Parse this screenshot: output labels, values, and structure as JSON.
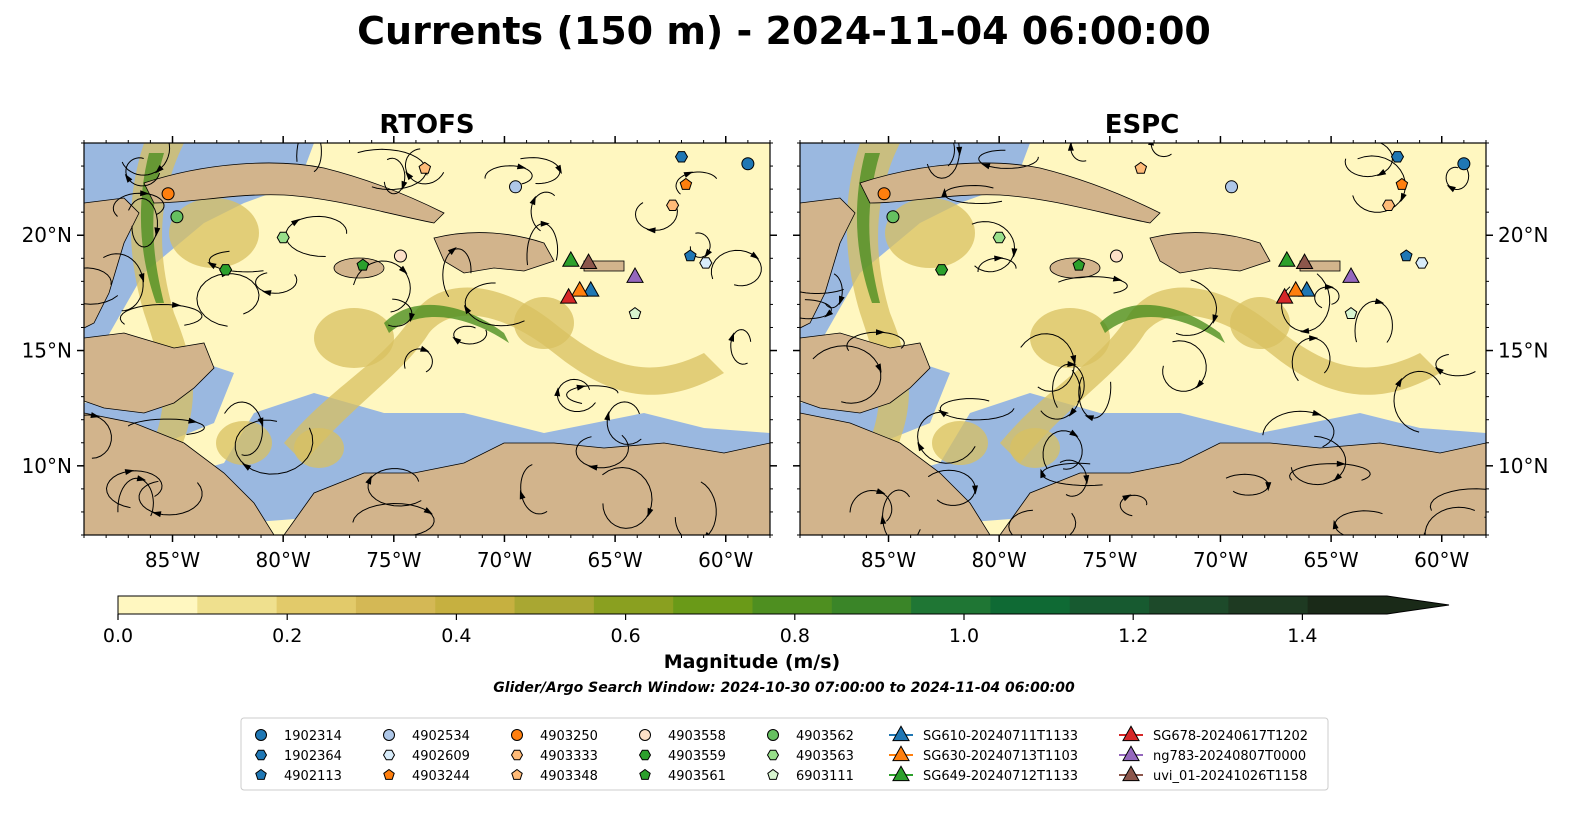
{
  "title": "Currents (150 m) - 2024-11-04 06:00:00",
  "panels": [
    {
      "title": "RTOFS"
    },
    {
      "title": "ESPC"
    }
  ],
  "colorbar": {
    "label": "Magnitude (m/s)",
    "ticks": [
      "0.0",
      "0.2",
      "0.4",
      "0.6",
      "0.8",
      "1.0",
      "1.2",
      "1.4"
    ],
    "colors": [
      "#fff7c0",
      "#efe08e",
      "#e2ca6a",
      "#d4b855",
      "#c6b040",
      "#a9a732",
      "#8aa020",
      "#6a9a18",
      "#4e8f20",
      "#3a8528",
      "#1f7634",
      "#0f6a34",
      "#175a30",
      "#1d4a2a",
      "#1e3a22",
      "#1a2a18"
    ]
  },
  "colors": {
    "land": "#d2b48c",
    "water_shallow": "#9ab8e0",
    "current_low": "#fff7c0",
    "current_mid": "#d8c060",
    "current_high": "#4e8f20"
  },
  "search_window": "Glider/Argo Search Window: 2024-10-30 07:00:00 to 2024-11-04 06:00:00",
  "legend": [
    {
      "label": "1902314",
      "marker": "circle",
      "color": "#1f77b4"
    },
    {
      "label": "1902364",
      "marker": "hexagon",
      "color": "#1f77b4"
    },
    {
      "label": "4902113",
      "marker": "pentagon",
      "color": "#1f77b4"
    },
    {
      "label": "4902534",
      "marker": "circle",
      "color": "#aec7e8"
    },
    {
      "label": "4902609",
      "marker": "hexagon",
      "color": "#d8ecfa"
    },
    {
      "label": "4903244",
      "marker": "pentagon",
      "color": "#ff7f0e"
    },
    {
      "label": "4903250",
      "marker": "circle",
      "color": "#ff7f0e"
    },
    {
      "label": "4903333",
      "marker": "hexagon",
      "color": "#ffbb78"
    },
    {
      "label": "4903348",
      "marker": "pentagon",
      "color": "#ffbb78"
    },
    {
      "label": "4903558",
      "marker": "circle",
      "color": "#fde0c8"
    },
    {
      "label": "4903559",
      "marker": "hexagon",
      "color": "#2ca02c"
    },
    {
      "label": "4903561",
      "marker": "pentagon",
      "color": "#2ca02c"
    },
    {
      "label": "4903562",
      "marker": "circle",
      "color": "#66c060"
    },
    {
      "label": "4903563",
      "marker": "hexagon",
      "color": "#98df8a"
    },
    {
      "label": "6903111",
      "marker": "pentagon",
      "color": "#d8f5d0"
    },
    {
      "label": "SG610-20240711T1133",
      "marker": "triangle",
      "color": "#1f77b4"
    },
    {
      "label": "SG630-20240713T1103",
      "marker": "triangle",
      "color": "#ff7f0e"
    },
    {
      "label": "SG649-20240712T1133",
      "marker": "triangle",
      "color": "#2ca02c"
    },
    {
      "label": "SG678-20240617T1202",
      "marker": "triangle",
      "color": "#d62728"
    },
    {
      "label": "ng783-20240807T0000",
      "marker": "triangle",
      "color": "#9467bd"
    },
    {
      "label": "uvi_01-20241026T1158",
      "marker": "triangle",
      "color": "#8c564b"
    }
  ],
  "chart_data": {
    "type": "map",
    "xlim": [
      -89,
      -58
    ],
    "ylim": [
      7,
      24
    ],
    "xticks": [
      {
        "value": -85,
        "label": "85°W"
      },
      {
        "value": -80,
        "label": "80°W"
      },
      {
        "value": -75,
        "label": "75°W"
      },
      {
        "value": -70,
        "label": "70°W"
      },
      {
        "value": -65,
        "label": "65°W"
      },
      {
        "value": -60,
        "label": "60°W"
      }
    ],
    "yticks": [
      {
        "value": 10,
        "label": "10°N"
      },
      {
        "value": 15,
        "label": "15°N"
      },
      {
        "value": 20,
        "label": "20°N"
      }
    ],
    "vmin": 0.0,
    "vmax": 1.5,
    "platforms": [
      {
        "name": "1902314",
        "lon": -59.0,
        "lat": 23.1
      },
      {
        "name": "1902364",
        "lon": -62.0,
        "lat": 23.4
      },
      {
        "name": "4902113",
        "lon": -61.6,
        "lat": 19.1
      },
      {
        "name": "4902534",
        "lon": -69.5,
        "lat": 22.1
      },
      {
        "name": "4902609",
        "lon": -60.9,
        "lat": 18.8
      },
      {
        "name": "4903244",
        "lon": -61.8,
        "lat": 22.2
      },
      {
        "name": "4903250",
        "lon": -85.2,
        "lat": 21.8
      },
      {
        "name": "4903333",
        "lon": -62.4,
        "lat": 21.3
      },
      {
        "name": "4903348",
        "lon": -73.6,
        "lat": 22.9
      },
      {
        "name": "4903558",
        "lon": -74.7,
        "lat": 19.1
      },
      {
        "name": "4903559",
        "lon": -82.6,
        "lat": 18.5
      },
      {
        "name": "4903561",
        "lon": -76.4,
        "lat": 18.7
      },
      {
        "name": "4903562",
        "lon": -84.8,
        "lat": 20.8
      },
      {
        "name": "4903563",
        "lon": -80.0,
        "lat": 19.9
      },
      {
        "name": "6903111",
        "lon": -64.1,
        "lat": 16.6
      },
      {
        "name": "SG610-20240711T1133",
        "lon": -66.1,
        "lat": 17.6
      },
      {
        "name": "SG630-20240713T1103",
        "lon": -66.6,
        "lat": 17.6
      },
      {
        "name": "SG649-20240712T1133",
        "lon": -67.0,
        "lat": 18.9
      },
      {
        "name": "SG678-20240617T1202",
        "lon": -67.1,
        "lat": 17.3
      },
      {
        "name": "ng783-20240807T0000",
        "lon": -64.1,
        "lat": 18.2
      },
      {
        "name": "uvi_01-20241026T1158",
        "lon": -66.2,
        "lat": 18.8
      }
    ]
  }
}
